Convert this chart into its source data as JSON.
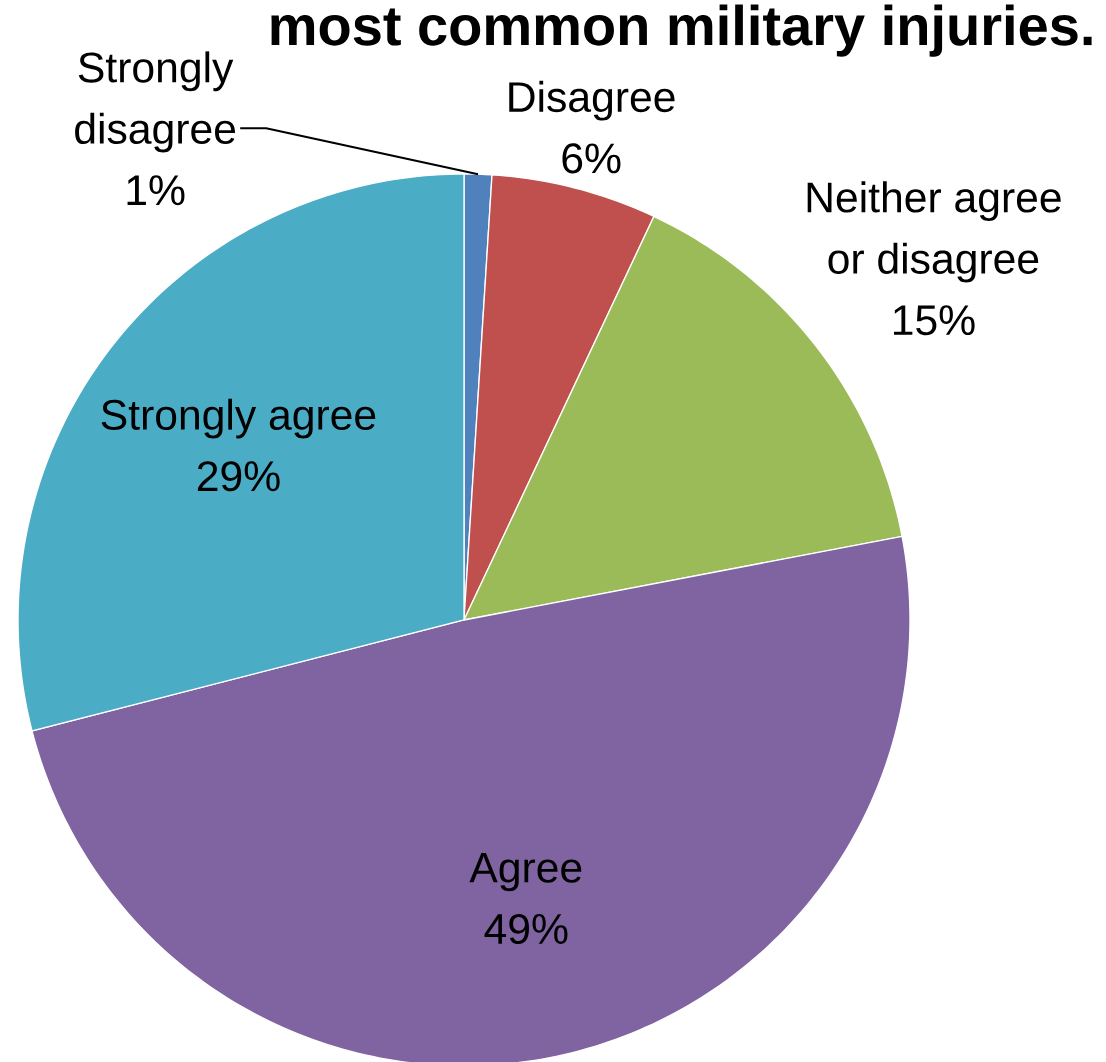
{
  "chart_data": {
    "type": "pie",
    "title": "most common military injuries.",
    "categories": [
      "Strongly disagree",
      "Disagree",
      "Neither agree or disagree",
      "Agree",
      "Strongly agree"
    ],
    "values": [
      1,
      6,
      15,
      49,
      29
    ],
    "colors": [
      "#4f81bd",
      "#c0504d",
      "#9bbb59",
      "#8064a2",
      "#4bacc6"
    ],
    "value_labels": [
      "1%",
      "6%",
      "15%",
      "49%",
      "29%"
    ]
  }
}
